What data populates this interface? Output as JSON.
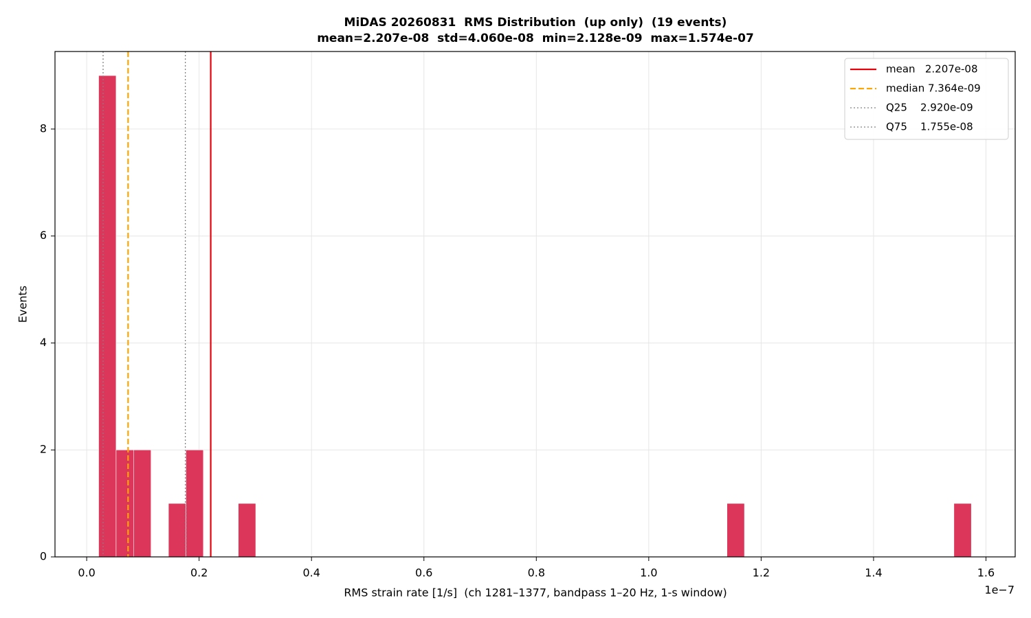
{
  "chart_data": {
    "type": "histogram",
    "title": "MiDAS 20260831  RMS Distribution  (up only)  (19 events)",
    "subtitle": "mean=2.207e-08  std=4.060e-08  min=2.128e-09  max=1.574e-07",
    "x_label": "RMS strain rate [1/s]  (ch 1281–1377, bandpass 1–20 Hz, 1-s window)",
    "y_label": "Events",
    "x_offset_label": "1e−7",
    "bins": [
      2.128e-09,
      5.233e-09,
      8.339e-09,
      1.1444e-08,
      1.455e-08,
      1.7655e-08,
      2.0761e-08,
      2.3866e-08,
      2.6972e-08,
      3.0077e-08,
      3.3182e-08,
      3.6288e-08,
      3.9393e-08,
      4.2499e-08,
      4.5604e-08,
      4.871e-08,
      5.1815e-08,
      5.492e-08,
      5.8026e-08,
      6.1131e-08,
      6.4237e-08,
      6.7342e-08,
      7.0448e-08,
      7.3553e-08,
      7.6659e-08,
      7.9764e-08,
      8.2869e-08,
      8.5975e-08,
      8.908e-08,
      9.2186e-08,
      9.5291e-08,
      9.8397e-08,
      1.01502e-07,
      1.04607e-07,
      1.07713e-07,
      1.10818e-07,
      1.13924e-07,
      1.17029e-07,
      1.20135e-07,
      1.2324e-07,
      1.26346e-07,
      1.29451e-07,
      1.32556e-07,
      1.35662e-07,
      1.38767e-07,
      1.41873e-07,
      1.44978e-07,
      1.48084e-07,
      1.51189e-07,
      1.54295e-07,
      1.574e-07
    ],
    "counts": [
      9,
      2,
      2,
      0,
      1,
      2,
      0,
      0,
      1,
      0,
      0,
      0,
      0,
      0,
      0,
      0,
      0,
      0,
      0,
      0,
      0,
      0,
      0,
      0,
      0,
      0,
      0,
      0,
      0,
      0,
      0,
      0,
      0,
      0,
      0,
      0,
      1,
      0,
      0,
      0,
      0,
      0,
      0,
      0,
      0,
      0,
      0,
      0,
      0,
      1
    ],
    "color": "#dc365a",
    "xlim": [
      -5.64e-09,
      1.652e-07
    ],
    "ylim": [
      0,
      9.45
    ],
    "xticks": [
      {
        "value": 0,
        "label": "0.0"
      },
      {
        "value": 2e-08,
        "label": "0.2"
      },
      {
        "value": 4e-08,
        "label": "0.4"
      },
      {
        "value": 6e-08,
        "label": "0.6"
      },
      {
        "value": 8e-08,
        "label": "0.8"
      },
      {
        "value": 1e-07,
        "label": "1.0"
      },
      {
        "value": 1.2e-07,
        "label": "1.2"
      },
      {
        "value": 1.4e-07,
        "label": "1.4"
      },
      {
        "value": 1.6e-07,
        "label": "1.6"
      }
    ],
    "yticks": [
      0,
      2,
      4,
      6,
      8
    ],
    "grid": true,
    "legend": "upper right",
    "ref_lines": [
      {
        "label": "mean   2.207e-08",
        "value": 2.207e-08,
        "color": "#e8000b",
        "style": "solid"
      },
      {
        "label": "median 7.364e-09",
        "value": 7.364e-09,
        "color": "#ffa500",
        "style": "dashed"
      },
      {
        "label": "Q25    2.920e-09",
        "value": 2.92e-09,
        "color": "#808080",
        "style": "dotted"
      },
      {
        "label": "Q75    1.755e-08",
        "value": 1.755e-08,
        "color": "#808080",
        "style": "dotted"
      }
    ]
  }
}
